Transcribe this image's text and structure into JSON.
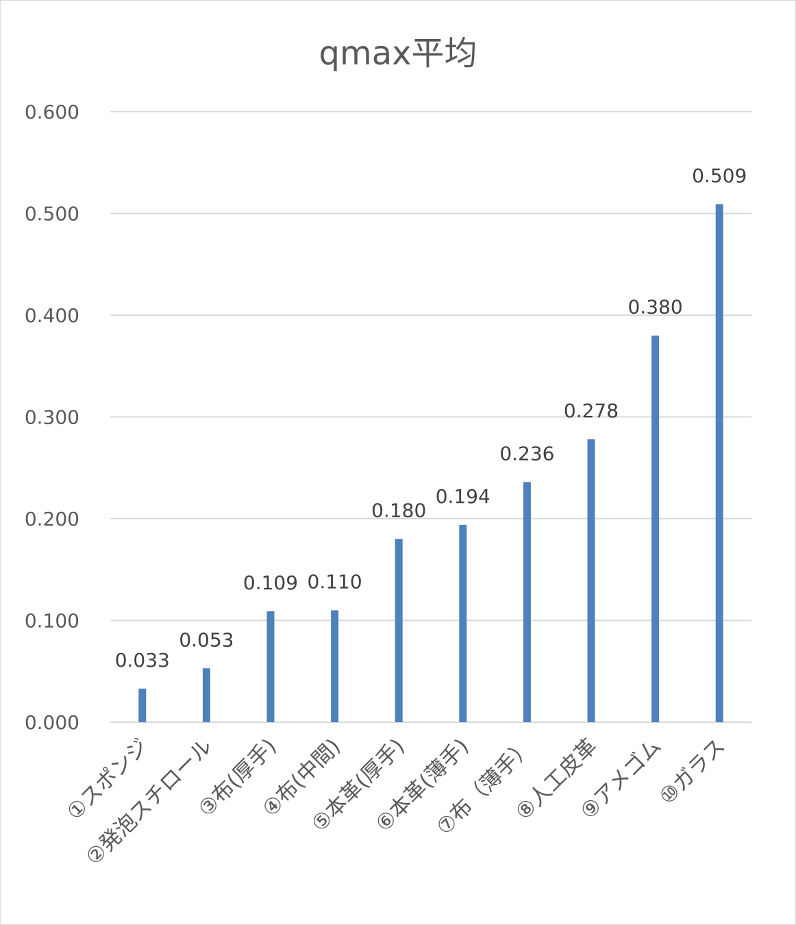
{
  "chart_data": {
    "type": "bar",
    "title": "qmax平均",
    "xlabel": "",
    "ylabel": "",
    "categories": [
      "①スポンジ",
      "②発泡スチロール",
      "③布(厚手)",
      "④布(中間)",
      "⑤本革(厚手)",
      "⑥本革(薄手)",
      "⑦布（薄手）",
      "⑧人工皮革",
      "⑨アメゴム",
      "⑩ガラス"
    ],
    "values": [
      0.033,
      0.053,
      0.109,
      0.11,
      0.18,
      0.194,
      0.236,
      0.278,
      0.38,
      0.509
    ],
    "data_labels": [
      "0.033",
      "0.053",
      "0.109",
      "0.110",
      "0.180",
      "0.194",
      "0.236",
      "0.278",
      "0.380",
      "0.509"
    ],
    "ylim": [
      0,
      0.6
    ],
    "yticks": [
      0,
      0.1,
      0.2,
      0.3,
      0.4,
      0.5,
      0.6
    ],
    "ytick_labels": [
      "0.000",
      "0.100",
      "0.200",
      "0.300",
      "0.400",
      "0.500",
      "0.600"
    ],
    "grid": true,
    "legend": "none",
    "bar_color": "#4f81bd",
    "grid_color": "#d9d9d9",
    "text_color": "#595959"
  }
}
